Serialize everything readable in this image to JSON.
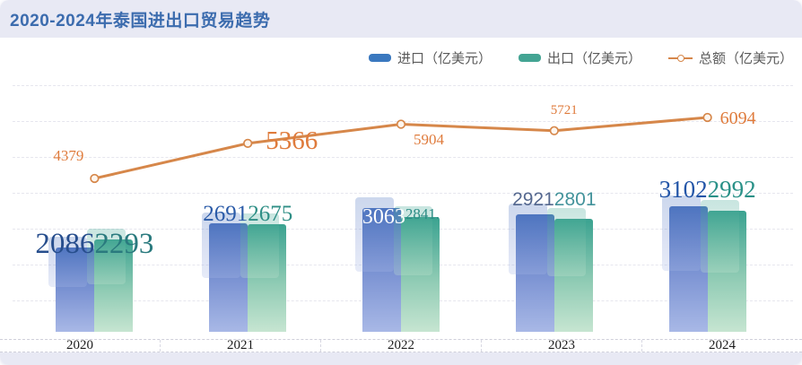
{
  "window": {
    "title": "2020-2024年泰国进出口贸易趋势"
  },
  "legend": {
    "items": [
      {
        "label": "进口（亿美元）",
        "color": "#3a78bf"
      },
      {
        "label": "出口（亿美元）",
        "color": "#43a493"
      },
      {
        "label": "总额（亿美元）",
        "color": "#d6874a"
      }
    ]
  },
  "chart_data": {
    "type": "combo",
    "title": "2020-2024年泰国进出口贸易趋势",
    "categories": [
      "2020",
      "2021",
      "2022",
      "2023",
      "2024"
    ],
    "series": [
      {
        "name": "进口（亿美元）",
        "type": "bar",
        "color": "#3a78bf",
        "values": [
          2086,
          2691,
          3063,
          2921,
          3102
        ],
        "labels": [
          "2086",
          "2691",
          "3063",
          "2921",
          "3102"
        ]
      },
      {
        "name": "出口（亿美元）",
        "type": "bar",
        "color": "#43a493",
        "values": [
          2293,
          2675,
          2841,
          2801,
          2992
        ],
        "labels": [
          "2293",
          "2675",
          "2841.",
          "2801",
          "2992"
        ]
      },
      {
        "name": "总额（亿美元）",
        "type": "line",
        "color": "#d6874a",
        "values": [
          4379,
          5366,
          5904,
          5721,
          6094
        ],
        "labels": [
          "4379",
          "5366",
          "5904",
          "5721",
          "6094"
        ]
      }
    ],
    "legend_position": "top-right",
    "grid": "dashed-horizontal",
    "xlabel": "",
    "ylabel": "",
    "ylim": [
      0,
      7000
    ]
  },
  "colors": {
    "header_bg": "#e8e9f4",
    "title_text": "#3c6cae",
    "import_label": "#274e8d",
    "export_label": "#2a7a7e",
    "line_label": "#df7b3c",
    "label_2022_import": "#ffffff",
    "label_2023_import": "#55688f",
    "label_2023_export": "#43939b"
  }
}
